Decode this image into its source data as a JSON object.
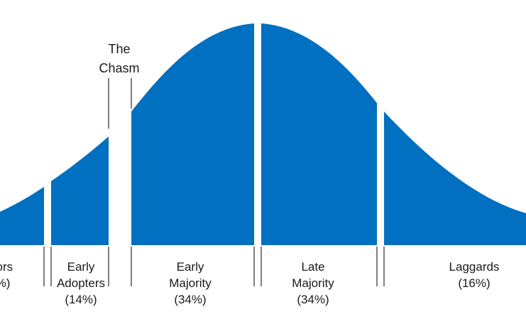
{
  "chasm": {
    "line1": "The",
    "line2": "Chasm"
  },
  "segments": [
    {
      "id": "innovators",
      "lines": [
        "tors",
        "%)"
      ]
    },
    {
      "id": "early-adopters",
      "lines": [
        "Early",
        "Adopters",
        "(14%)"
      ]
    },
    {
      "id": "early-majority",
      "lines": [
        "Early",
        "Majority",
        "(34%)"
      ]
    },
    {
      "id": "late-majority",
      "lines": [
        "Late",
        "Majority",
        "(34%)"
      ]
    },
    {
      "id": "laggards",
      "lines": [
        "Laggards",
        "(16%)"
      ]
    }
  ],
  "colors": {
    "fill": "#0170c1",
    "divider": "#000000",
    "text": "#1a1a1a"
  }
}
